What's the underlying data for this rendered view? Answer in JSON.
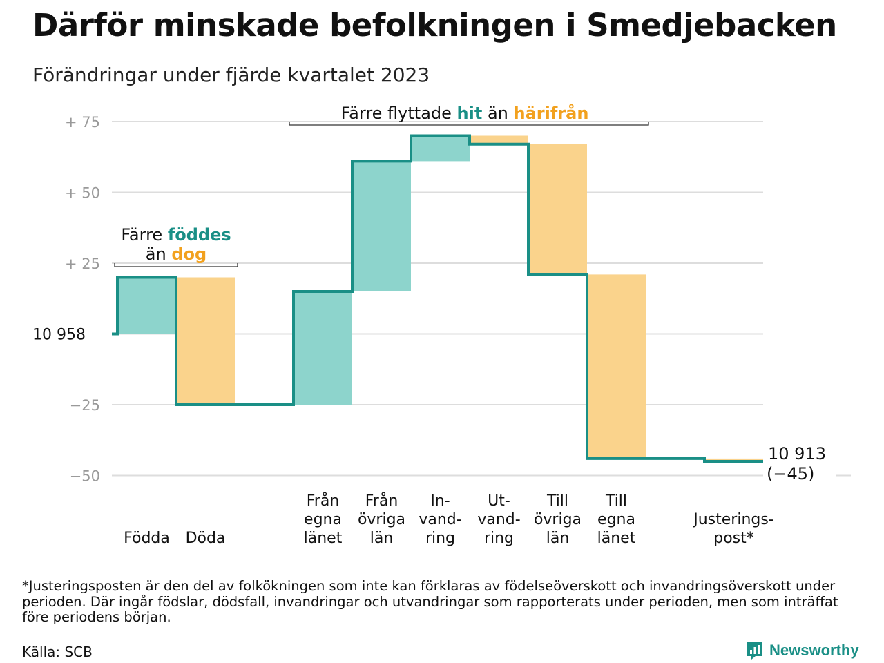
{
  "title": "Därför minskade befolkningen i Smedjebacken",
  "subtitle": "Förändringar under fjärde kvartalet 2023",
  "footnote": "*Justeringsposten är den del av folkökningen som inte kan förklaras av födelseöverskott och invandringsöverskott under perioden. Där ingår födslar, dödsfall, invandringar och utvandringar som rapporterats under perioden, men som inträffat före periodens början.",
  "source": "Källa: SCB",
  "brand": "Newsworthy",
  "colors": {
    "increase": "#8dd4cc",
    "decrease": "#fad38c",
    "line": "#1a8f86",
    "increase_text": "#1a8f86",
    "decrease_text": "#f2a11e",
    "grid": "#dddddd",
    "tick_text": "#999999"
  },
  "chart_data": {
    "type": "waterfall",
    "base_value": 10958,
    "base_label": "10  958",
    "ylim": [
      -50,
      75
    ],
    "yticks": [
      {
        "value": 75,
        "label": "+  75"
      },
      {
        "value": 50,
        "label": "+  50"
      },
      {
        "value": 25,
        "label": "+  25"
      },
      {
        "value": 0,
        "label": ""
      },
      {
        "value": -25,
        "label": "−25"
      },
      {
        "value": -50,
        "label": "−50"
      }
    ],
    "steps": [
      {
        "label": [
          "Födda"
        ],
        "change": 20,
        "kind": "increase"
      },
      {
        "label": [
          "Döda"
        ],
        "change": -45,
        "kind": "decrease"
      },
      {
        "label": [],
        "change": 0,
        "kind": "gap"
      },
      {
        "label": [
          "Från",
          "egna",
          "länet"
        ],
        "change": 40,
        "kind": "increase"
      },
      {
        "label": [
          "Från",
          "övriga",
          "län"
        ],
        "change": 46,
        "kind": "increase"
      },
      {
        "label": [
          "In-",
          "vand-",
          "ring"
        ],
        "change": 9,
        "kind": "increase"
      },
      {
        "label": [
          "Ut-",
          "vand-",
          "ring"
        ],
        "change": -3,
        "kind": "decrease"
      },
      {
        "label": [
          "Till",
          "övriga",
          "län"
        ],
        "change": -46,
        "kind": "decrease"
      },
      {
        "label": [
          "Till",
          "egna",
          "länet"
        ],
        "change": -65,
        "kind": "decrease"
      },
      {
        "label": [],
        "change": 0,
        "kind": "gap"
      },
      {
        "label": [
          "Justerings-",
          "post*"
        ],
        "change": -1,
        "kind": "decrease"
      }
    ],
    "end_value_label": "10 913",
    "end_change_label": "(−45)",
    "annotations": [
      {
        "parts": [
          {
            "text": "Färre ",
            "style": "plain"
          },
          {
            "text": "föddes",
            "style": "increase"
          }
        ],
        "parts2": [
          {
            "text": "än ",
            "style": "plain"
          },
          {
            "text": "dog",
            "style": "decrease"
          }
        ],
        "from_step": 0,
        "to_step": 1
      },
      {
        "parts": [
          {
            "text": "Färre flyttade ",
            "style": "plain"
          },
          {
            "text": "hit",
            "style": "increase"
          },
          {
            "text": " än ",
            "style": "plain"
          },
          {
            "text": "härifrån",
            "style": "decrease"
          }
        ],
        "from_step": 3,
        "to_step": 8
      }
    ]
  }
}
